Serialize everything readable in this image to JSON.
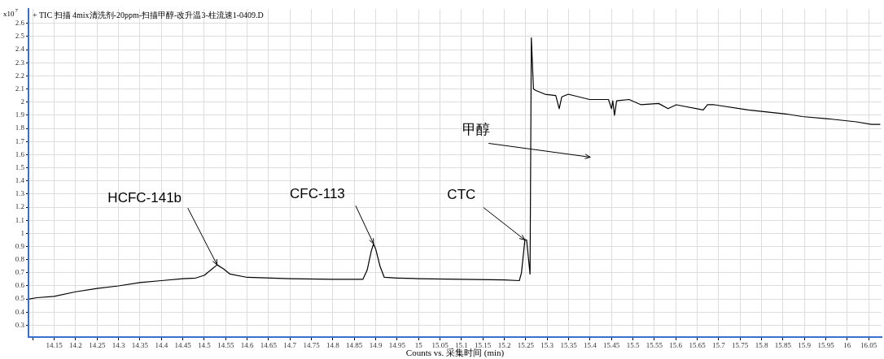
{
  "chart_data": {
    "type": "line",
    "title": "+ TIC 扫描 4mix清洗剂-20ppm-扫描甲醇-改升温3-柱流速1-0409.D",
    "xlabel": "Counts vs. 采集时间 (min)",
    "ylabel": "x10$^{7}$",
    "xlim": [
      14.09,
      16.08
    ],
    "ylim": [
      0.21,
      2.71
    ],
    "xticks": [
      {
        "value": 14.1,
        "label": null
      },
      14.15,
      14.2,
      14.25,
      14.3,
      14.35,
      14.4,
      14.45,
      14.5,
      14.55,
      14.6,
      14.65,
      14.7,
      14.75,
      14.8,
      14.85,
      14.9,
      14.95,
      15,
      15.05,
      15.1,
      15.15,
      15.2,
      15.25,
      15.3,
      15.35,
      15.4,
      15.45,
      15.5,
      15.55,
      15.6,
      15.65,
      15.7,
      15.75,
      15.8,
      15.85,
      15.9,
      15.95,
      16,
      16.05
    ],
    "yticks": [
      0.3,
      0.4,
      0.5,
      0.6,
      0.7,
      0.8,
      0.9,
      1,
      1.1,
      1.2,
      1.3,
      1.4,
      1.5,
      1.6,
      1.7,
      1.8,
      1.9,
      2,
      2.1,
      2.2,
      2.3,
      2.4,
      2.5,
      2.6
    ],
    "grid": true,
    "legend": false,
    "marker": "none",
    "line_style": "solid",
    "series": [
      {
        "color": "#000000",
        "x": [
          14.092,
          14.11,
          14.15,
          14.2,
          14.25,
          14.3,
          14.35,
          14.4,
          14.45,
          14.48,
          14.5,
          14.515,
          14.53,
          14.545,
          14.56,
          14.6,
          14.7,
          14.8,
          14.87,
          14.88,
          14.89,
          14.895,
          14.9,
          14.91,
          14.92,
          14.95,
          15,
          15.1,
          15.2,
          15.235,
          15.24,
          15.248,
          15.252,
          15.26,
          15.263,
          15.268,
          15.273,
          15.295,
          15.32,
          15.328,
          15.334,
          15.349,
          15.399,
          15.443,
          15.45,
          15.453,
          15.457,
          15.462,
          15.491,
          15.519,
          15.56,
          15.582,
          15.601,
          15.664,
          15.674,
          15.69,
          15.769,
          15.857,
          15.895,
          15.964,
          16.021,
          16.056,
          16.077
        ],
        "values": [
          0.5,
          0.51,
          0.52,
          0.555,
          0.58,
          0.6,
          0.625,
          0.64,
          0.655,
          0.66,
          0.68,
          0.72,
          0.76,
          0.73,
          0.69,
          0.665,
          0.655,
          0.65,
          0.65,
          0.72,
          0.87,
          0.92,
          0.88,
          0.75,
          0.665,
          0.66,
          0.655,
          0.65,
          0.645,
          0.64,
          0.7,
          0.95,
          0.95,
          0.69,
          2.49,
          2.1,
          2.09,
          2.06,
          2.05,
          1.95,
          2.04,
          2.06,
          2.02,
          2.02,
          1.95,
          2.01,
          1.9,
          2.01,
          2.02,
          1.98,
          1.99,
          1.95,
          1.98,
          1.94,
          1.98,
          1.98,
          1.94,
          1.91,
          1.89,
          1.87,
          1.85,
          1.83,
          1.83
        ]
      }
    ],
    "annotations": [
      {
        "text": "HCFC-141b",
        "x": 14.53,
        "y": 0.76
      },
      {
        "text": "CFC-113",
        "x": 14.895,
        "y": 0.92
      },
      {
        "text": "CTC",
        "x": 15.248,
        "y": 0.95
      },
      "甲醇"
    ]
  }
}
